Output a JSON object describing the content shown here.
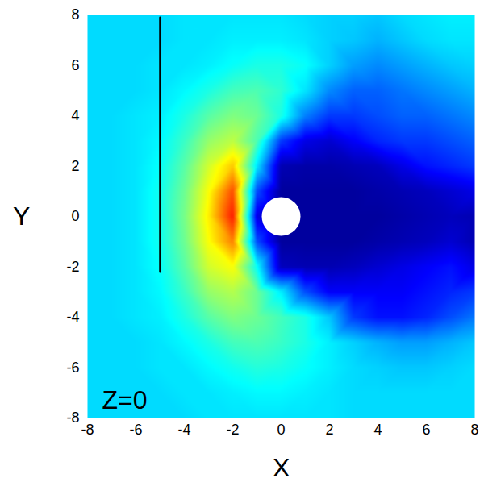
{
  "chart_data": {
    "type": "heatmap",
    "x_label": "X",
    "y_label": "Y",
    "annotations": [
      {
        "text": "Z=0",
        "x": -7.4,
        "y": -7.3
      }
    ],
    "xlim": [
      -8,
      8
    ],
    "ylim": [
      -8,
      8
    ],
    "xticks": [
      -8,
      -6,
      -4,
      -2,
      0,
      2,
      4,
      6,
      8
    ],
    "yticks": [
      -8,
      -6,
      -4,
      -2,
      0,
      2,
      4,
      6,
      8
    ],
    "zlim": [
      0,
      1
    ],
    "x": [
      -8,
      -7,
      -6,
      -5,
      -4,
      -3,
      -2,
      -1,
      0,
      1,
      2,
      3,
      4,
      5,
      6,
      7,
      8
    ],
    "y": [
      8,
      7,
      6,
      5,
      4,
      3,
      2,
      1,
      0,
      -1,
      -2,
      -3,
      -4,
      -5,
      -6,
      -7,
      -8
    ],
    "cells": [
      [
        0.34,
        0.34,
        0.34,
        0.34,
        0.35,
        0.35,
        0.35,
        0.35,
        0.35,
        0.34,
        0.33,
        0.33,
        0.32,
        0.34,
        0.35,
        0.36,
        0.36
      ],
      [
        0.34,
        0.34,
        0.34,
        0.34,
        0.35,
        0.35,
        0.36,
        0.36,
        0.36,
        0.35,
        0.33,
        0.32,
        0.3,
        0.32,
        0.34,
        0.35,
        0.35
      ],
      [
        0.34,
        0.34,
        0.34,
        0.35,
        0.35,
        0.36,
        0.38,
        0.4,
        0.4,
        0.38,
        0.33,
        0.28,
        0.26,
        0.28,
        0.3,
        0.32,
        0.33
      ],
      [
        0.34,
        0.34,
        0.34,
        0.35,
        0.37,
        0.4,
        0.44,
        0.45,
        0.42,
        0.35,
        0.26,
        0.22,
        0.22,
        0.24,
        0.26,
        0.28,
        0.3
      ],
      [
        0.34,
        0.34,
        0.35,
        0.36,
        0.4,
        0.46,
        0.5,
        0.48,
        0.4,
        0.25,
        0.18,
        0.18,
        0.2,
        0.22,
        0.22,
        0.24,
        0.26
      ],
      [
        0.34,
        0.34,
        0.35,
        0.37,
        0.43,
        0.52,
        0.56,
        0.45,
        0.18,
        0.1,
        0.08,
        0.12,
        0.16,
        0.18,
        0.18,
        0.2,
        0.22
      ],
      [
        0.34,
        0.34,
        0.35,
        0.38,
        0.46,
        0.58,
        0.68,
        0.35,
        0.05,
        0.04,
        0.04,
        0.05,
        0.06,
        0.1,
        0.14,
        0.16,
        0.18
      ],
      [
        0.34,
        0.34,
        0.35,
        0.39,
        0.48,
        0.62,
        0.8,
        0.2,
        0.03,
        0.03,
        0.03,
        0.03,
        0.04,
        0.05,
        0.06,
        0.08,
        0.1
      ],
      [
        0.34,
        0.34,
        0.35,
        0.39,
        0.49,
        0.64,
        0.85,
        0.1,
        0.03,
        0.03,
        0.03,
        0.03,
        0.03,
        0.04,
        0.05,
        0.06,
        0.05
      ],
      [
        0.34,
        0.34,
        0.35,
        0.39,
        0.48,
        0.62,
        0.75,
        0.2,
        0.03,
        0.03,
        0.03,
        0.03,
        0.04,
        0.05,
        0.06,
        0.08,
        0.05
      ],
      [
        0.34,
        0.34,
        0.35,
        0.38,
        0.46,
        0.58,
        0.62,
        0.38,
        0.06,
        0.05,
        0.05,
        0.06,
        0.08,
        0.1,
        0.12,
        0.14,
        0.1
      ],
      [
        0.34,
        0.34,
        0.35,
        0.37,
        0.43,
        0.52,
        0.55,
        0.48,
        0.36,
        0.2,
        0.12,
        0.12,
        0.12,
        0.12,
        0.14,
        0.16,
        0.18
      ],
      [
        0.34,
        0.34,
        0.35,
        0.36,
        0.4,
        0.46,
        0.5,
        0.48,
        0.44,
        0.4,
        0.32,
        0.18,
        0.14,
        0.14,
        0.16,
        0.2,
        0.24
      ],
      [
        0.34,
        0.34,
        0.34,
        0.35,
        0.37,
        0.4,
        0.44,
        0.45,
        0.43,
        0.4,
        0.36,
        0.33,
        0.3,
        0.28,
        0.28,
        0.3,
        0.32
      ],
      [
        0.34,
        0.34,
        0.34,
        0.35,
        0.35,
        0.37,
        0.39,
        0.41,
        0.4,
        0.38,
        0.36,
        0.34,
        0.33,
        0.32,
        0.32,
        0.33,
        0.34
      ],
      [
        0.34,
        0.34,
        0.34,
        0.34,
        0.35,
        0.35,
        0.36,
        0.37,
        0.37,
        0.36,
        0.35,
        0.34,
        0.34,
        0.34,
        0.34,
        0.34,
        0.34
      ],
      [
        0.34,
        0.34,
        0.34,
        0.34,
        0.34,
        0.35,
        0.35,
        0.35,
        0.35,
        0.35,
        0.35,
        0.34,
        0.34,
        0.34,
        0.34,
        0.34,
        0.34
      ]
    ],
    "line": {
      "x": [
        -5,
        -5
      ],
      "y": [
        -2.2,
        7.9
      ]
    },
    "body": {
      "x": 0,
      "y": 0,
      "radius": 0.8
    }
  }
}
